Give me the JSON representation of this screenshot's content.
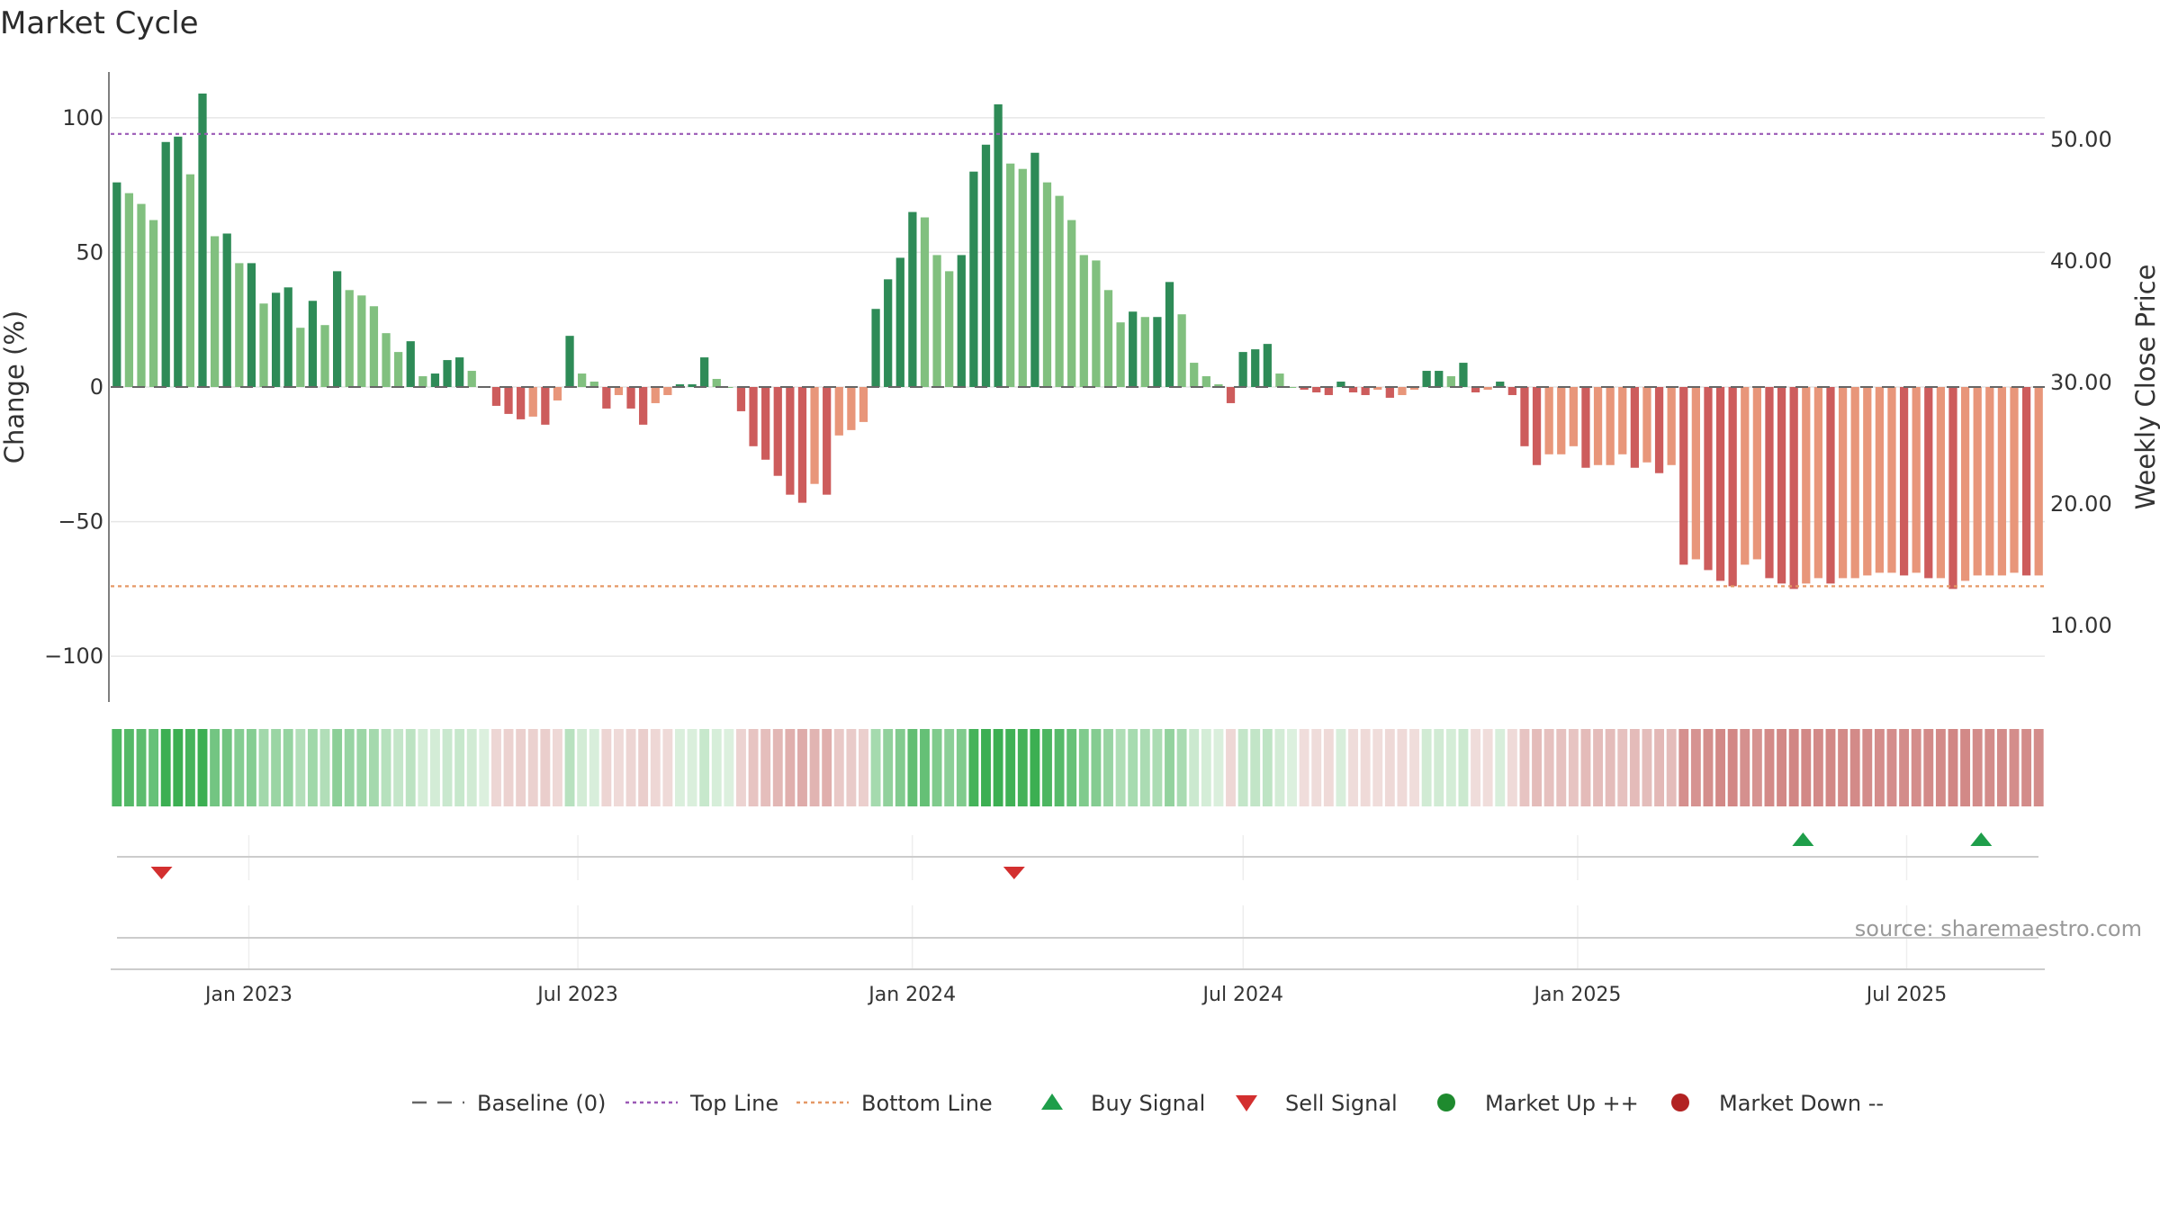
{
  "chart_data": {
    "type": "bar",
    "title": "Market Cycle",
    "ylabel_left": "Change (%)",
    "ylabel_right": "Weekly Close Price",
    "source": "source: sharemaestro.com",
    "y_left_range": [
      -117,
      117
    ],
    "y_left_ticks": [
      100,
      50,
      0,
      -50,
      -100
    ],
    "y_left_tick_labels": [
      "100",
      "50",
      "0",
      "−50",
      "−100"
    ],
    "y_right_ticks": [
      50,
      40,
      30,
      20,
      10
    ],
    "y_right_tick_labels": [
      "50.00",
      "40.00",
      "30.00",
      "20.00",
      "10.00"
    ],
    "x_start": "2022-10-17",
    "x_end": "2025-09-15",
    "x_tick_dates": [
      "2023-01-01",
      "2023-07-01",
      "2024-01-01",
      "2024-07-01",
      "2025-01-01",
      "2025-07-01"
    ],
    "x_tick_labels": [
      "Jan 2023",
      "Jul 2023",
      "Jan 2024",
      "Jul 2024",
      "Jan 2025",
      "Jul 2025"
    ],
    "top_line": 94,
    "bottom_line": -74,
    "grid": true,
    "legend_position": "bottom-center",
    "weekly_change": [
      76,
      72,
      68,
      62,
      91,
      93,
      79,
      109,
      56,
      57,
      46,
      46,
      31,
      35,
      37,
      22,
      32,
      23,
      43,
      36,
      34,
      30,
      20,
      13,
      17,
      4,
      5,
      10,
      11,
      6,
      0,
      -7,
      -10,
      -12,
      -11,
      -14,
      -5,
      19,
      5,
      2,
      -8,
      -3,
      -8,
      -14,
      -6,
      -3,
      1,
      1,
      11,
      3,
      0,
      -9,
      -22,
      -27,
      -33,
      -40,
      -43,
      -36,
      -40,
      -18,
      -16,
      -13,
      29,
      40,
      48,
      65,
      63,
      49,
      43,
      49,
      80,
      90,
      105,
      83,
      81,
      87,
      76,
      71,
      62,
      49,
      47,
      36,
      24,
      28,
      26,
      26,
      39,
      27,
      9,
      4,
      1,
      -6,
      13,
      14,
      16,
      5,
      0,
      -1,
      -2,
      -3,
      2,
      -2,
      -3,
      -1,
      -4,
      -3,
      -1,
      6,
      6,
      4,
      9,
      -2,
      -1,
      2,
      -3,
      -22,
      -29,
      -25,
      -25,
      -22,
      -30,
      -29,
      -29,
      -25,
      -30,
      -28,
      -32,
      -29,
      -66,
      -64,
      -68,
      -72,
      -74,
      -66,
      -64,
      -71,
      -73,
      -75,
      -73,
      -71,
      -73,
      -71,
      -71,
      -70,
      -69,
      -69,
      -70,
      -69,
      -71,
      -71,
      -75,
      -72,
      -70,
      -70,
      -70,
      -69,
      -70,
      -70
    ],
    "close_price_series": "not printed",
    "signals": [
      {
        "type": "sell",
        "date": "2022-11-14"
      },
      {
        "type": "sell",
        "date": "2024-02-26"
      },
      {
        "type": "buy",
        "date": "2025-05-05"
      },
      {
        "type": "buy",
        "date": "2025-08-11"
      }
    ],
    "legend": [
      {
        "label": "Baseline (0)",
        "kind": "dash",
        "color": "#666666"
      },
      {
        "label": "Top Line",
        "kind": "dotted",
        "color": "#9b59b6"
      },
      {
        "label": "Bottom Line",
        "kind": "dotted",
        "color": "#e59866"
      },
      {
        "label": "Buy Signal",
        "kind": "triangle-up",
        "color": "#1e9e4a"
      },
      {
        "label": "Sell Signal",
        "kind": "triangle-down",
        "color": "#d32f2f"
      },
      {
        "label": "Market Up ++",
        "kind": "dot",
        "color": "#1e8a2e"
      },
      {
        "label": "Market Down --",
        "kind": "dot",
        "color": "#b22222"
      }
    ],
    "colors": {
      "up_strong": "#2e8b57",
      "up_light": "#81c07f",
      "down_strong": "#cd5c5c",
      "down_light": "#e8967a",
      "top_line": "#9b59b6",
      "bottom_line": "#e59866",
      "grid": "#e6e6e6"
    }
  }
}
